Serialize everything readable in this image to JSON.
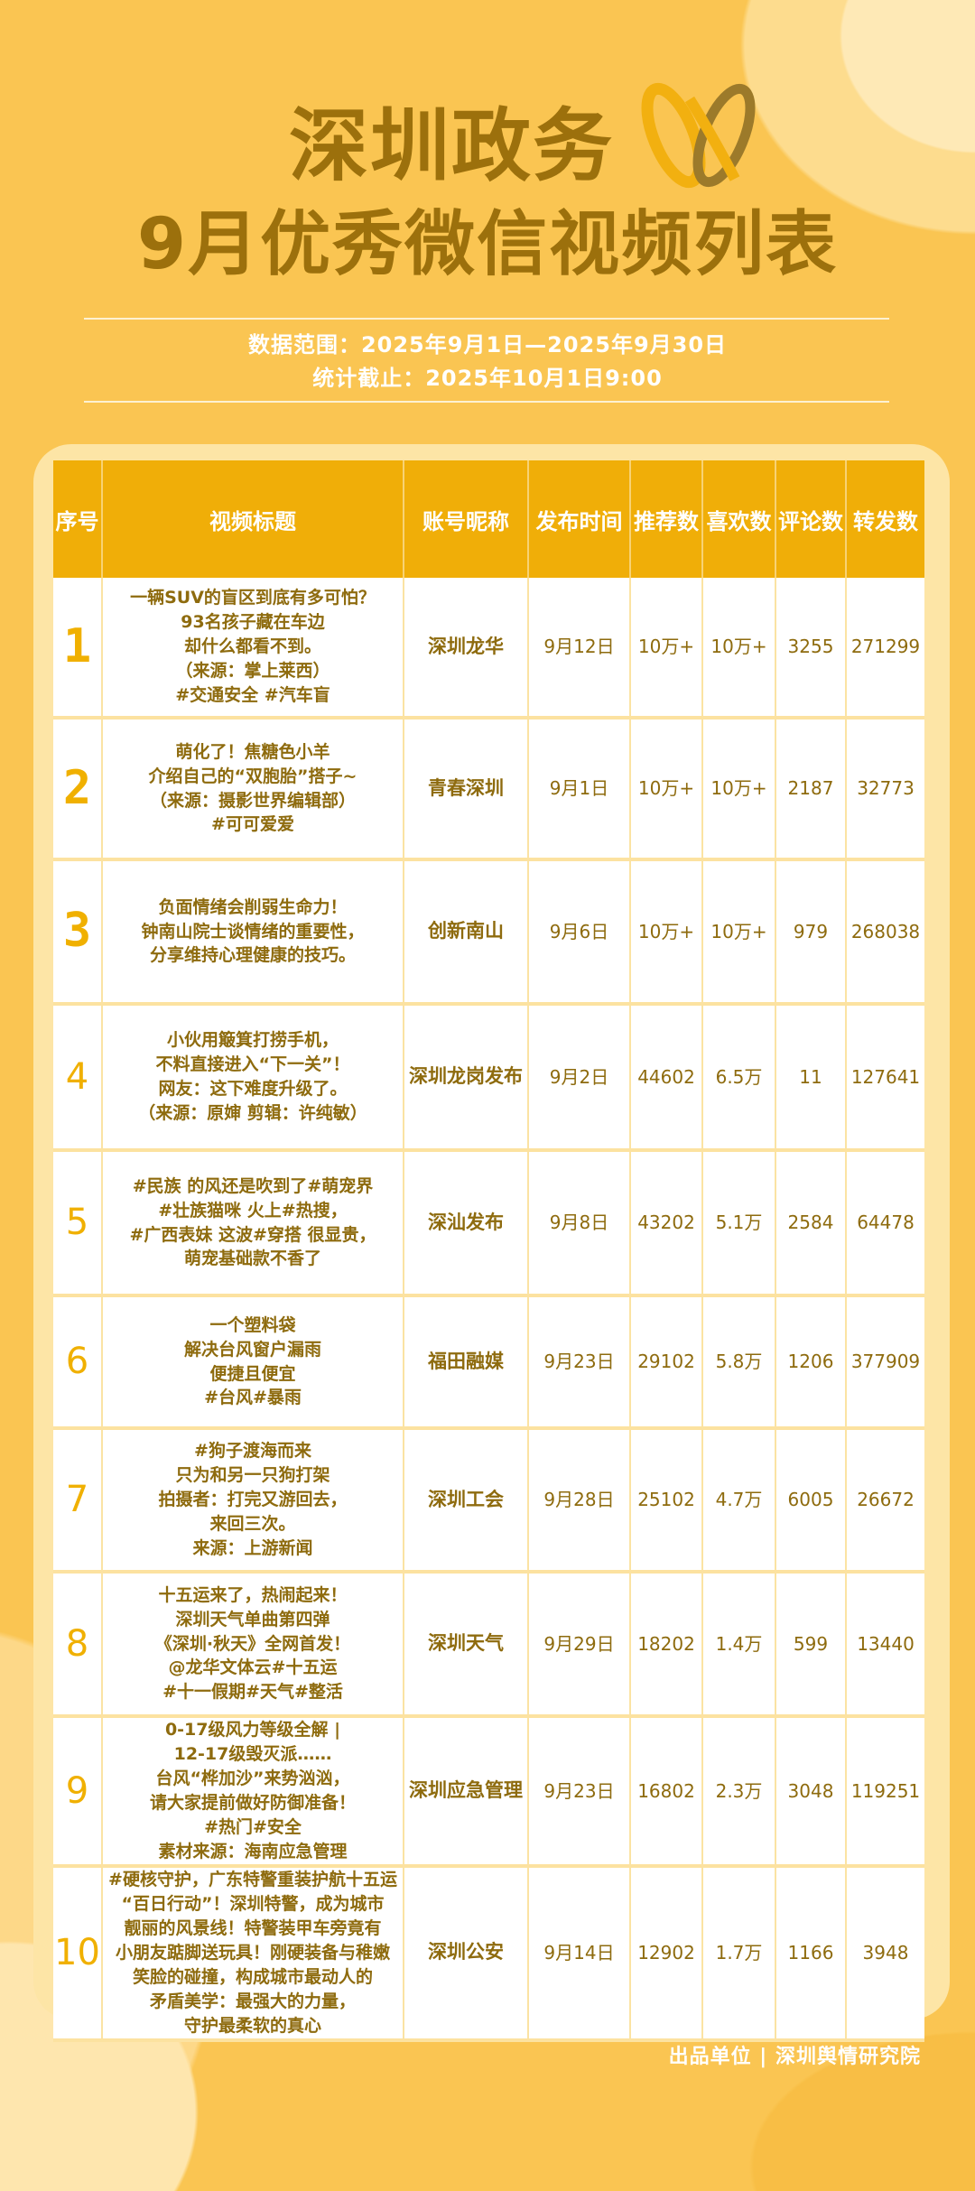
{
  "header": {
    "title_line1": "深圳政务",
    "title_line2": "9月优秀微信视频列表",
    "logo": "wechat-channels-logo",
    "data_range": "数据范围：2025年9月1日—2025年9月30日",
    "cutoff": "统计截止：2025年10月1日9:00"
  },
  "colors": {
    "background": "#FAC552",
    "table_header": "#F0AE08",
    "text": "#8E6B0E",
    "rank": "#F0B000"
  },
  "table": {
    "columns": [
      "序号",
      "视频标题",
      "账号昵称",
      "发布时间",
      "推荐数",
      "喜欢数",
      "评论数",
      "转发数"
    ],
    "rows": [
      {
        "rank": "1",
        "title": "一辆SUV的盲区到底有多可怕？\n93名孩子藏在车边\n却什么都看不到。\n（来源：掌上莱西）\n#交通安全 #汽车盲",
        "account": "深圳龙华",
        "date": "9月12日",
        "recommend": "10万+",
        "likes": "10万+",
        "comments": "3255",
        "shares": "271299"
      },
      {
        "rank": "2",
        "title": "萌化了！焦糖色小羊\n介绍自己的“双胞胎”搭子~\n（来源：摄影世界编辑部）\n#可可爱爱",
        "account": "青春深圳",
        "date": "9月1日",
        "recommend": "10万+",
        "likes": "10万+",
        "comments": "2187",
        "shares": "32773"
      },
      {
        "rank": "3",
        "title": "负面情绪会削弱生命力！\n钟南山院士谈情绪的重要性，\n分享维持心理健康的技巧。",
        "account": "创新南山",
        "date": "9月6日",
        "recommend": "10万+",
        "likes": "10万+",
        "comments": "979",
        "shares": "268038"
      },
      {
        "rank": "4",
        "title": "小伙用簸箕打捞手机，\n不料直接进入“下一关”！\n网友：这下难度升级了。\n（来源：原婶 剪辑：许纯敏）",
        "account": "深圳龙岗发布",
        "date": "9月2日",
        "recommend": "44602",
        "likes": "6.5万",
        "comments": "11",
        "shares": "127641"
      },
      {
        "rank": "5",
        "title": "#民族 的风还是吹到了#萌宠界\n#壮族猫咪 火上#热搜，\n#广西表妹 这波#穿搭 很显贵，\n萌宠基础款不香了",
        "account": "深汕发布",
        "date": "9月8日",
        "recommend": "43202",
        "likes": "5.1万",
        "comments": "2584",
        "shares": "64478"
      },
      {
        "rank": "6",
        "title": "一个塑料袋\n解决台风窗户漏雨\n便捷且便宜\n#台风#暴雨",
        "account": "福田融媒",
        "date": "9月23日",
        "recommend": "29102",
        "likes": "5.8万",
        "comments": "1206",
        "shares": "377909"
      },
      {
        "rank": "7",
        "title": "#狗子渡海而来\n只为和另一只狗打架\n拍摄者：打完又游回去，\n来回三次。\n来源：上游新闻",
        "account": "深圳工会",
        "date": "9月28日",
        "recommend": "25102",
        "likes": "4.7万",
        "comments": "6005",
        "shares": "26672"
      },
      {
        "rank": "8",
        "title": "十五运来了，热闹起来！\n深圳天气单曲第四弹\n《深圳·秋天》全网首发！\n@龙华文体云#十五运\n#十一假期#天气#整活",
        "account": "深圳天气",
        "date": "9月29日",
        "recommend": "18202",
        "likes": "1.4万",
        "comments": "599",
        "shares": "13440"
      },
      {
        "rank": "9",
        "title": "0-17级风力等级全解 |\n12-17级毁灭派……\n台风“桦加沙”来势汹汹，\n请大家提前做好防御准备！\n#热门#安全\n素材来源：海南应急管理",
        "account": "深圳应急管理",
        "date": "9月23日",
        "recommend": "16802",
        "likes": "2.3万",
        "comments": "3048",
        "shares": "119251"
      },
      {
        "rank": "10",
        "title": "#硬核守护，广东特警重装护航十五运\n“百日行动”！深圳特警，成为城市\n靓丽的风景线！特警装甲车旁竟有\n小朋友踮脚送玩具！刚硬装备与稚嫩\n笑脸的碰撞，构成城市最动人的\n矛盾美学：最强大的力量，\n守护最柔软的真心",
        "account": "深圳公安",
        "date": "9月14日",
        "recommend": "12902",
        "likes": "1.7万",
        "comments": "1166",
        "shares": "3948"
      }
    ]
  },
  "footer": {
    "producer": "出品单位 | 深圳舆情研究院"
  }
}
